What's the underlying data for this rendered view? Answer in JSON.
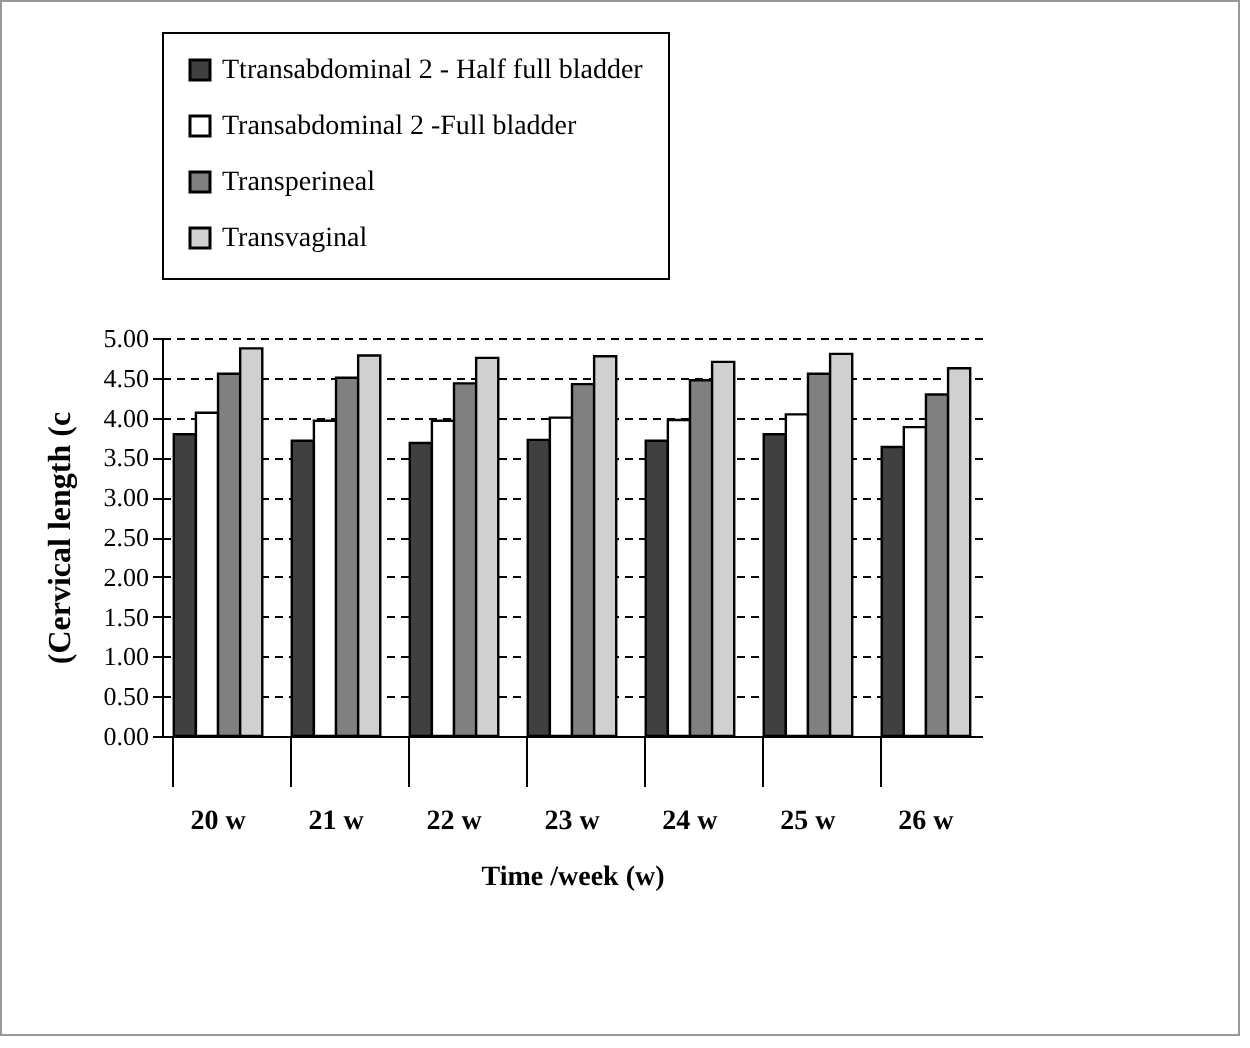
{
  "chart_data": {
    "type": "bar",
    "ylabel": "(Cervical length (c",
    "xlabel": "Time /week (w)",
    "categories": [
      "20 w",
      "21 w",
      "22 w",
      "23 w",
      "24 w",
      "25 w",
      "26 w"
    ],
    "series": [
      {
        "name": "Ttransabdominal 2 - Half full bladder",
        "color": "#404040",
        "values": [
          3.79,
          3.71,
          3.68,
          3.72,
          3.71,
          3.79,
          3.63
        ]
      },
      {
        "name": "Transabdominal 2 -Full bladder",
        "color": "#ffffff",
        "values": [
          4.06,
          3.96,
          3.96,
          4.0,
          3.97,
          4.04,
          3.88
        ]
      },
      {
        "name": "Transperineal",
        "color": "#808080",
        "values": [
          4.55,
          4.5,
          4.43,
          4.42,
          4.47,
          4.55,
          4.29
        ]
      },
      {
        "name": "Transvaginal",
        "color": "#d0d0d0",
        "values": [
          4.87,
          4.78,
          4.75,
          4.77,
          4.7,
          4.8,
          4.62
        ]
      }
    ],
    "ylim": [
      0,
      5
    ],
    "yticks": [
      {
        "value": 0,
        "label": "0.00"
      },
      {
        "value": 0.5,
        "label": "0.50"
      },
      {
        "value": 1,
        "label": "1.00"
      },
      {
        "value": 1.5,
        "label": "1.50"
      },
      {
        "value": 2,
        "label": "2.00"
      },
      {
        "value": 2.5,
        "label": "2.50"
      },
      {
        "value": 3,
        "label": "3.00"
      },
      {
        "value": 3.5,
        "label": "3.50"
      },
      {
        "value": 4,
        "label": "4.00"
      },
      {
        "value": 4.5,
        "label": "4.50"
      },
      {
        "value": 5,
        "label": "5.00"
      }
    ],
    "grid": "y",
    "legend": "top"
  }
}
